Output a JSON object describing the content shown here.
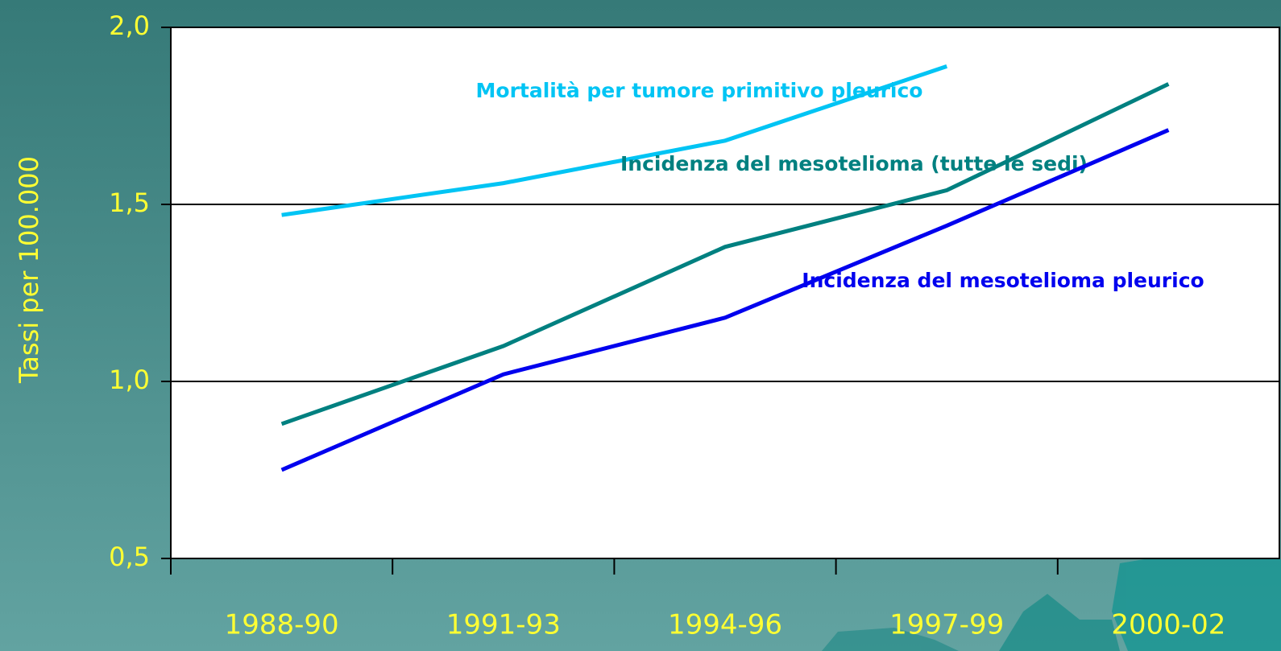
{
  "chart_data": {
    "type": "line",
    "y_label": "Tassi per 100.000",
    "categories": [
      "1988-90",
      "1991-93",
      "1994-96",
      "1997-99",
      "2000-02"
    ],
    "series": [
      {
        "name": "Mortalità per tumore primitivo pleurico",
        "color": "#00c4f4",
        "values": [
          1.47,
          1.56,
          1.68,
          1.89,
          null
        ]
      },
      {
        "name": "Incidenza del mesotelioma (tutte le sedi)",
        "color": "#008080",
        "values": [
          0.88,
          1.1,
          1.38,
          1.54,
          1.84
        ]
      },
      {
        "name": "Incidenza del mesotelioma pleurico",
        "color": "#0000ee",
        "values": [
          0.75,
          1.02,
          1.18,
          1.44,
          1.71
        ]
      }
    ],
    "ylim": [
      0.5,
      2.0
    ],
    "yticks": [
      {
        "value": 0.5,
        "label": "0,5"
      },
      {
        "value": 1.0,
        "label": "1,0"
      },
      {
        "value": 1.5,
        "label": "1,5"
      },
      {
        "value": 2.0,
        "label": "2,0"
      }
    ],
    "grid": true
  }
}
